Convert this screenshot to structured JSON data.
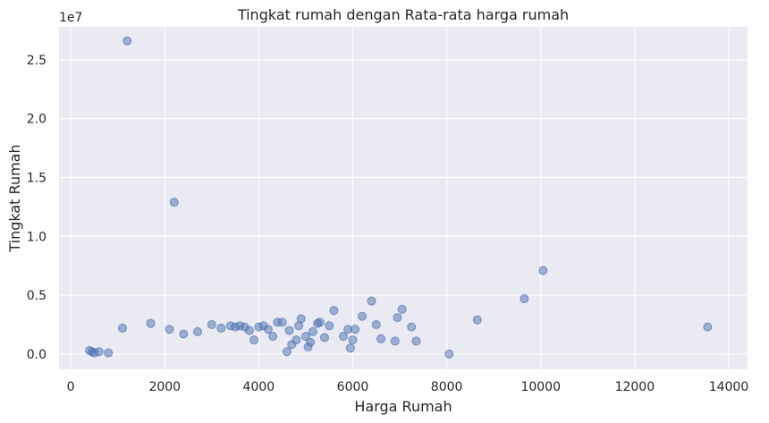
{
  "chart_data": {
    "type": "scatter",
    "title": "Tingkat rumah dengan Rata-rata harga rumah",
    "xlabel": "Harga Rumah",
    "ylabel": "Tingkat Rumah",
    "y_offset_text": "1e7",
    "xlim": [
      -250,
      14400
    ],
    "ylim": [
      -1300000,
      27800000
    ],
    "x_ticks": [
      0,
      2000,
      4000,
      6000,
      8000,
      10000,
      12000,
      14000
    ],
    "x_tick_labels": [
      "0",
      "2000",
      "4000",
      "6000",
      "8000",
      "10000",
      "12000",
      "14000"
    ],
    "y_ticks": [
      0,
      5000000,
      10000000,
      15000000,
      20000000,
      25000000
    ],
    "y_tick_labels": [
      "0.0",
      "0.5",
      "1.0",
      "1.5",
      "2.0",
      "2.5"
    ],
    "grid": true,
    "series": [
      {
        "color": "#4c72b0",
        "points": [
          [
            1200,
            26600000
          ],
          [
            2200,
            12900000
          ],
          [
            10050,
            7100000
          ],
          [
            9650,
            4700000
          ],
          [
            13550,
            2300000
          ],
          [
            8650,
            2900000
          ],
          [
            8050,
            0
          ],
          [
            7050,
            3800000
          ],
          [
            6950,
            3100000
          ],
          [
            7250,
            2300000
          ],
          [
            7350,
            1100000
          ],
          [
            6900,
            1100000
          ],
          [
            6400,
            4500000
          ],
          [
            6500,
            2500000
          ],
          [
            6600,
            1300000
          ],
          [
            6200,
            3200000
          ],
          [
            6050,
            2100000
          ],
          [
            6000,
            1200000
          ],
          [
            5950,
            500000
          ],
          [
            5900,
            2100000
          ],
          [
            5800,
            1500000
          ],
          [
            5600,
            3700000
          ],
          [
            5500,
            2400000
          ],
          [
            5400,
            1400000
          ],
          [
            5300,
            2700000
          ],
          [
            5250,
            2600000
          ],
          [
            5150,
            1900000
          ],
          [
            5100,
            1000000
          ],
          [
            5050,
            600000
          ],
          [
            5000,
            1500000
          ],
          [
            4900,
            3000000
          ],
          [
            4850,
            2400000
          ],
          [
            4800,
            1200000
          ],
          [
            4700,
            800000
          ],
          [
            4650,
            2000000
          ],
          [
            4600,
            200000
          ],
          [
            4500,
            2700000
          ],
          [
            4400,
            2700000
          ],
          [
            4300,
            1500000
          ],
          [
            4200,
            2100000
          ],
          [
            4100,
            2400000
          ],
          [
            4000,
            2300000
          ],
          [
            3900,
            1200000
          ],
          [
            3800,
            2000000
          ],
          [
            3700,
            2300000
          ],
          [
            3600,
            2400000
          ],
          [
            3500,
            2300000
          ],
          [
            3400,
            2400000
          ],
          [
            3200,
            2200000
          ],
          [
            3000,
            2500000
          ],
          [
            2700,
            1900000
          ],
          [
            2400,
            1700000
          ],
          [
            2100,
            2100000
          ],
          [
            1700,
            2600000
          ],
          [
            1100,
            2200000
          ],
          [
            800,
            100000
          ],
          [
            600,
            200000
          ],
          [
            400,
            300000
          ],
          [
            450,
            200000
          ],
          [
            500,
            100000
          ]
        ]
      }
    ]
  }
}
